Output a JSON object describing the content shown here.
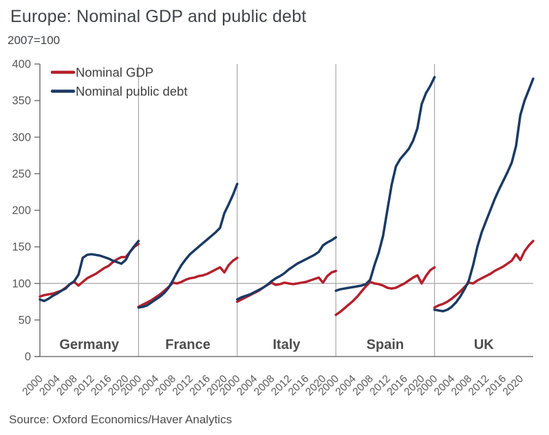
{
  "header": {
    "title": "Europe: Nominal GDP and public debt",
    "subtitle": "2007=100"
  },
  "footer": {
    "source": "Source: Oxford Economics/Haver Analytics"
  },
  "colors": {
    "gdp_line": "#b5202c",
    "debt_line": "#1a3a63",
    "grid": "#a6a6a6",
    "axis": "#595959",
    "tick_text": "#595959",
    "panel_label_text": "#4d4d4d",
    "legend_text": "#3f3f3f",
    "title_text": "#404448"
  },
  "chart_data": {
    "type": "line",
    "title": "Europe: Nominal GDP and public debt",
    "subtitle": "2007=100",
    "ylabel": "",
    "xlabel": "",
    "ylim": [
      0,
      400
    ],
    "yticks": [
      0,
      50,
      100,
      150,
      200,
      250,
      300,
      350,
      400
    ],
    "xticks": [
      2000,
      2004,
      2008,
      2012,
      2016,
      2020
    ],
    "x_range_per_panel": [
      2000,
      2023
    ],
    "reference_line_y": 100,
    "grid": "single horizontal gridline at 100; vertical separators between country panels",
    "legend_position": "top-left",
    "series_meta": [
      {
        "key": "gdp",
        "label": "Nominal GDP",
        "color": "#b5202c"
      },
      {
        "key": "debt",
        "label": "Nominal public debt",
        "color": "#1a3a63"
      }
    ],
    "x": [
      2000,
      2001,
      2002,
      2003,
      2004,
      2005,
      2006,
      2007,
      2008,
      2009,
      2010,
      2011,
      2012,
      2013,
      2014,
      2015,
      2016,
      2017,
      2018,
      2019,
      2020,
      2021,
      2022,
      2023
    ],
    "panels": [
      {
        "name": "Germany",
        "gdp": [
          82,
          84,
          85,
          86,
          88,
          90,
          94,
          99,
          102,
          97,
          102,
          107,
          110,
          113,
          117,
          121,
          124,
          129,
          133,
          136,
          136,
          143,
          150,
          154
        ],
        "debt": [
          78,
          76,
          79,
          83,
          86,
          90,
          93,
          99,
          103,
          112,
          135,
          139,
          140,
          139,
          138,
          136,
          134,
          131,
          129,
          127,
          132,
          143,
          151,
          158
        ]
      },
      {
        "name": "France",
        "gdp": [
          68,
          71,
          74,
          77,
          81,
          85,
          90,
          95,
          101,
          100,
          102,
          105,
          107,
          108,
          110,
          111,
          113,
          116,
          119,
          122,
          115,
          125,
          131,
          135
        ],
        "debt": [
          67,
          68,
          70,
          74,
          78,
          82,
          87,
          94,
          104,
          115,
          125,
          133,
          140,
          145,
          150,
          155,
          160,
          165,
          170,
          176,
          196,
          208,
          221,
          236
        ]
      },
      {
        "name": "Italy",
        "gdp": [
          75,
          78,
          81,
          84,
          87,
          90,
          94,
          98,
          101,
          98,
          99,
          101,
          100,
          99,
          100,
          101,
          102,
          104,
          106,
          108,
          101,
          110,
          115,
          117
        ],
        "debt": [
          78,
          81,
          83,
          85,
          88,
          91,
          94,
          98,
          103,
          107,
          110,
          114,
          119,
          123,
          127,
          130,
          133,
          136,
          139,
          143,
          152,
          156,
          159,
          163
        ]
      },
      {
        "name": "Spain",
        "gdp": [
          57,
          61,
          66,
          71,
          76,
          82,
          89,
          96,
          102,
          100,
          99,
          97,
          94,
          93,
          94,
          97,
          100,
          104,
          108,
          111,
          100,
          110,
          118,
          122
        ],
        "debt": [
          90,
          92,
          93,
          94,
          95,
          96,
          97,
          99,
          105,
          125,
          142,
          165,
          200,
          235,
          260,
          270,
          277,
          284,
          295,
          312,
          345,
          360,
          370,
          382
        ]
      },
      {
        "name": "UK",
        "gdp": [
          67,
          70,
          72,
          75,
          79,
          84,
          89,
          95,
          101,
          100,
          104,
          107,
          110,
          113,
          117,
          120,
          123,
          127,
          131,
          140,
          132,
          144,
          152,
          158
        ],
        "debt": [
          64,
          63,
          62,
          64,
          68,
          74,
          82,
          92,
          104,
          125,
          150,
          170,
          185,
          200,
          215,
          228,
          240,
          252,
          265,
          288,
          330,
          350,
          365,
          380
        ]
      }
    ]
  }
}
